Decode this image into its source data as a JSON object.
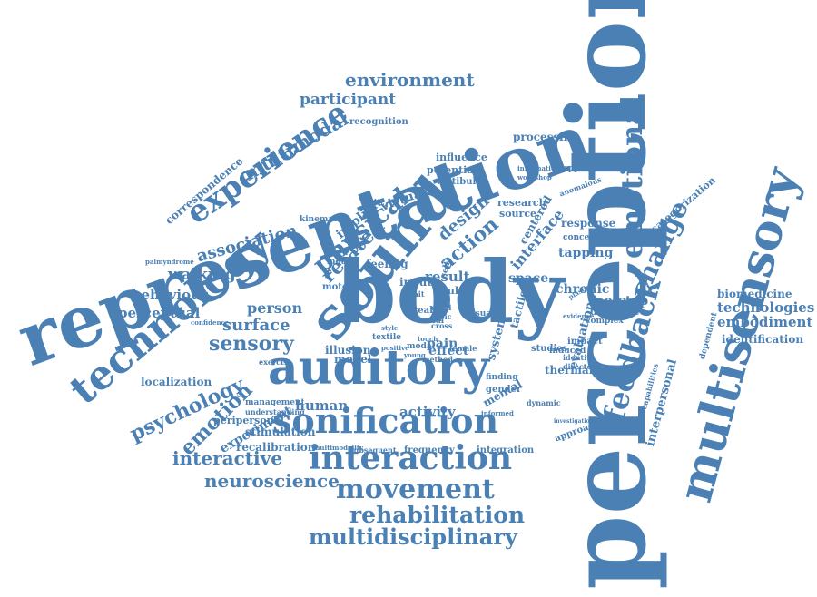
{
  "colors": {
    "word": "#4a80b4",
    "background": "#ffffff"
  },
  "words": [
    "perception",
    "body",
    "representation",
    "sound",
    "auditory",
    "multisensory",
    "technology",
    "sonification",
    "interaction",
    "experience",
    "feedback",
    "emotional",
    "movement",
    "rehabilitation",
    "multidisciplinary",
    "neuroscience",
    "interactive",
    "environment",
    "participant",
    "multimodal",
    "change",
    "physical",
    "sensory",
    "emotion",
    "psychology",
    "localization",
    "correspondence",
    "association",
    "walking",
    "behaviour",
    "perceptual",
    "surface",
    "person",
    "human",
    "activity",
    "experiment",
    "stimulation",
    "recalibration",
    "embodiment",
    "technologies",
    "biomedicine",
    "identification",
    "interpersonal",
    "chronic",
    "footstep",
    "different",
    "complex",
    "evaluation",
    "tapping",
    "concept",
    "response",
    "processing",
    "opportunities",
    "information",
    "workshop",
    "influence",
    "potential",
    "vestibular",
    "virtual",
    "implicit",
    "related",
    "kinematic",
    "design",
    "action",
    "interface",
    "research",
    "source",
    "centered",
    "space",
    "result",
    "effect",
    "input",
    "model",
    "pain",
    "system",
    "tactile",
    "thermal",
    "induced",
    "studies",
    "mental",
    "dynamic",
    "gender",
    "finding",
    "integration",
    "frequency",
    "subsequent",
    "peripersonal",
    "management",
    "understanding",
    "palmyndrome",
    "confidence",
    "recognition",
    "categorization",
    "dependent",
    "capabilities",
    "anomalous",
    "approaching",
    "investigation",
    "identity",
    "directed",
    "evidence",
    "plasticity",
    "feeling",
    "reality",
    "social",
    "child",
    "topic",
    "cross",
    "adult",
    "illusion",
    "motor",
    "motion",
    "textile",
    "modal",
    "style",
    "visual",
    "positive",
    "method",
    "female",
    "young",
    "gait",
    "self",
    "touch",
    "impact",
    "exercise",
    "multimodality",
    "informed"
  ]
}
